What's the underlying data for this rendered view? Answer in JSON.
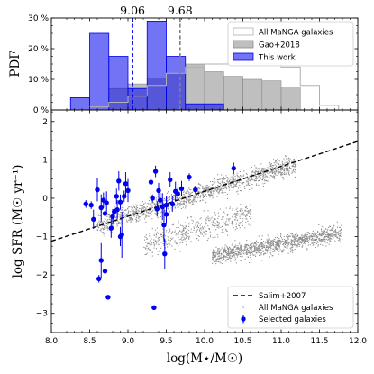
{
  "chart_data": [
    {
      "panel": "top",
      "type": "bar",
      "ylabel": "PDF",
      "xlim": [
        8.0,
        12.0
      ],
      "ylim": [
        0,
        30
      ],
      "yticks": [
        0,
        10,
        20,
        30
      ],
      "ytick_labels": [
        "0 %",
        "10 %",
        "20 %",
        "30 %"
      ],
      "bin_width": 0.25,
      "legend_position": "top-right",
      "series": [
        {
          "name": "All MaNGA galaxies",
          "style": "outline",
          "color": "#b0b0b0",
          "bins": [
            [
              8.5,
              1
            ],
            [
              8.75,
              2.5
            ],
            [
              9.0,
              4.5
            ],
            [
              9.25,
              8
            ],
            [
              9.5,
              12
            ],
            [
              9.75,
              14
            ],
            [
              10.0,
              15
            ],
            [
              10.25,
              15
            ],
            [
              10.5,
              15
            ],
            [
              10.75,
              15
            ],
            [
              11.0,
              14
            ],
            [
              11.25,
              8
            ],
            [
              11.5,
              1.5
            ]
          ]
        },
        {
          "name": "Gao+2018",
          "style": "filled",
          "color": "#a9a9a9",
          "bins": [
            [
              8.75,
              7
            ],
            [
              9.0,
              8.5
            ],
            [
              9.25,
              10.5
            ],
            [
              9.5,
              12
            ],
            [
              9.75,
              15
            ],
            [
              10.0,
              12.5
            ],
            [
              10.25,
              11
            ],
            [
              10.5,
              10
            ],
            [
              10.75,
              9.5
            ],
            [
              11.0,
              7.5
            ]
          ]
        },
        {
          "name": "This work",
          "style": "filled",
          "color": "#0000ee",
          "bins": [
            [
              8.25,
              4
            ],
            [
              8.5,
              25
            ],
            [
              8.75,
              17.5
            ],
            [
              9.0,
              7
            ],
            [
              9.25,
              29
            ],
            [
              9.5,
              17.5
            ],
            [
              9.75,
              2
            ],
            [
              10.0,
              2
            ]
          ]
        }
      ],
      "vlines": [
        {
          "x": 9.06,
          "label": "9.06",
          "color": "#0000ee"
        },
        {
          "x": 9.68,
          "label": "9.68",
          "color": "#808080"
        }
      ]
    },
    {
      "panel": "bottom",
      "type": "scatter",
      "xlabel": "log(M⋆/M☉)",
      "ylabel": "log SFR (M☉ yr⁻¹)",
      "xlim": [
        8.0,
        12.0
      ],
      "ylim": [
        -3.5,
        2.3
      ],
      "xticks": [
        8.0,
        8.5,
        9.0,
        9.5,
        10.0,
        10.5,
        11.0,
        11.5,
        12.0
      ],
      "xtick_labels": [
        "8.0",
        "8.5",
        "9.0",
        "9.5",
        "10.0",
        "10.5",
        "11.0",
        "11.5",
        "12.0"
      ],
      "yticks": [
        -3,
        -2,
        -1,
        0,
        1,
        2
      ],
      "ytick_labels": [
        "−3",
        "−2",
        "−1",
        "0",
        "1",
        "2"
      ],
      "legend_position": "bottom-right",
      "legend": [
        "Salim+2007",
        "All MaNGA galaxies",
        "Selected galaxies"
      ],
      "salim_line": {
        "name": "Salim+2007",
        "x": [
          8.0,
          12.0
        ],
        "y": [
          -1.12,
          1.48
        ]
      },
      "background_clouds": [
        {
          "name": "All MaNGA galaxies",
          "component": "star-forming sequence",
          "x_range": [
            8.6,
            11.2
          ],
          "y_at_xmin": -0.7,
          "y_at_xmax": 0.9,
          "scatter": 0.32,
          "count": 1400
        },
        {
          "name": "All MaNGA galaxies",
          "component": "quiescent cloud",
          "x_range": [
            10.1,
            11.8
          ],
          "y_at_xmin": -1.5,
          "y_at_xmax": -0.9,
          "scatter": 0.28,
          "count": 1200
        },
        {
          "name": "All MaNGA galaxies",
          "component": "green valley",
          "x_range": [
            9.2,
            10.6
          ],
          "y_at_xmin": -1.2,
          "y_at_xmax": -0.4,
          "scatter": 0.45,
          "count": 500
        }
      ],
      "selected_galaxies": [
        {
          "x": 8.45,
          "y": -0.15,
          "err": 0.1
        },
        {
          "x": 8.52,
          "y": -0.18,
          "err": 0.1
        },
        {
          "x": 8.55,
          "y": -0.55,
          "err": 0.25
        },
        {
          "x": 8.6,
          "y": 0.22,
          "err": 0.3
        },
        {
          "x": 8.62,
          "y": -2.1,
          "err": 0.1
        },
        {
          "x": 8.65,
          "y": -1.62,
          "err": 0.45
        },
        {
          "x": 8.65,
          "y": -0.25,
          "err": 0.35
        },
        {
          "x": 8.68,
          "y": -0.05,
          "err": 0.2
        },
        {
          "x": 8.7,
          "y": -0.4,
          "err": 0.15
        },
        {
          "x": 8.7,
          "y": -1.9,
          "err": 0.2
        },
        {
          "x": 8.72,
          "y": -0.12,
          "err": 0.3
        },
        {
          "x": 8.74,
          "y": -2.58,
          "err": 0.05
        },
        {
          "x": 8.78,
          "y": -0.78,
          "err": 0.25
        },
        {
          "x": 8.8,
          "y": -0.48,
          "err": 0.2
        },
        {
          "x": 8.82,
          "y": -0.35,
          "err": 0.15
        },
        {
          "x": 8.85,
          "y": 0.05,
          "err": 0.2
        },
        {
          "x": 8.86,
          "y": -0.3,
          "err": 0.25
        },
        {
          "x": 8.88,
          "y": 0.45,
          "err": 0.25
        },
        {
          "x": 8.9,
          "y": -0.1,
          "err": 0.2
        },
        {
          "x": 8.9,
          "y": -1.0,
          "err": 0.25
        },
        {
          "x": 8.92,
          "y": -0.95,
          "err": 0.6
        },
        {
          "x": 8.95,
          "y": 0.05,
          "err": 0.15
        },
        {
          "x": 8.97,
          "y": 0.38,
          "err": 0.3
        },
        {
          "x": 9.0,
          "y": 0.2,
          "err": 0.3
        },
        {
          "x": 9.3,
          "y": 0.42,
          "err": 0.45
        },
        {
          "x": 9.32,
          "y": 0.0,
          "err": 0.1
        },
        {
          "x": 9.34,
          "y": -2.85,
          "err": 0.05
        },
        {
          "x": 9.36,
          "y": 0.7,
          "err": 0.15
        },
        {
          "x": 9.38,
          "y": -0.28,
          "err": 0.2
        },
        {
          "x": 9.4,
          "y": 0.2,
          "err": 0.2
        },
        {
          "x": 9.42,
          "y": -0.05,
          "err": 0.2
        },
        {
          "x": 9.45,
          "y": -0.22,
          "err": 0.35
        },
        {
          "x": 9.47,
          "y": -0.7,
          "err": 0.45
        },
        {
          "x": 9.48,
          "y": -1.45,
          "err": 0.4
        },
        {
          "x": 9.5,
          "y": -0.42,
          "err": 0.25
        },
        {
          "x": 9.5,
          "y": -0.18,
          "err": 0.25
        },
        {
          "x": 9.55,
          "y": 0.48,
          "err": 0.2
        },
        {
          "x": 9.58,
          "y": -0.15,
          "err": 0.2
        },
        {
          "x": 9.62,
          "y": 0.18,
          "err": 0.25
        },
        {
          "x": 9.65,
          "y": 0.12,
          "err": 0.15
        },
        {
          "x": 9.7,
          "y": 0.25,
          "err": 0.2
        },
        {
          "x": 9.8,
          "y": 0.55,
          "err": 0.1
        },
        {
          "x": 9.88,
          "y": 0.22,
          "err": 0.1
        },
        {
          "x": 10.38,
          "y": 0.78,
          "err": 0.15
        }
      ]
    }
  ]
}
